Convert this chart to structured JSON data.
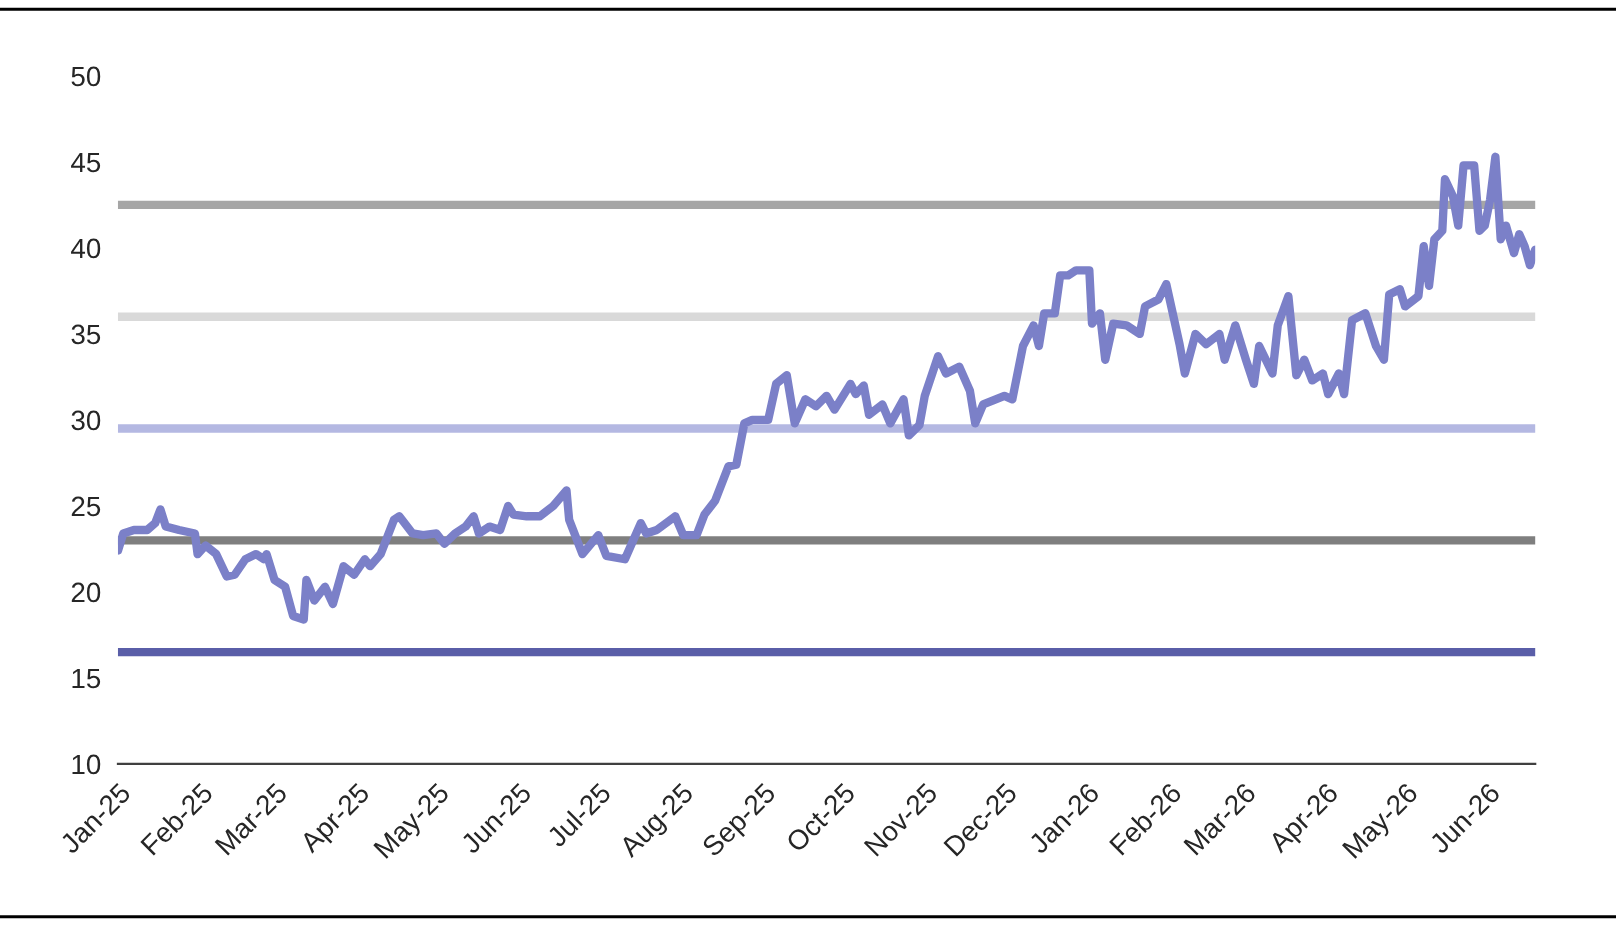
{
  "chart_data": {
    "type": "line",
    "x": [
      "2025-01-01",
      "2025-01-03",
      "2025-01-07",
      "2025-01-12",
      "2025-01-15",
      "2025-01-17",
      "2025-01-19",
      "2025-01-24",
      "2025-01-30",
      "2025-01-31",
      "2025-02-03",
      "2025-02-07",
      "2025-02-11",
      "2025-02-14",
      "2025-02-18",
      "2025-02-22",
      "2025-02-25",
      "2025-02-26",
      "2025-03-01",
      "2025-03-05",
      "2025-03-08",
      "2025-03-12",
      "2025-03-13",
      "2025-03-16",
      "2025-03-20",
      "2025-03-23",
      "2025-03-27",
      "2025-03-31",
      "2025-04-04",
      "2025-04-06",
      "2025-04-10",
      "2025-04-15",
      "2025-04-17",
      "2025-04-22",
      "2025-04-26",
      "2025-05-01",
      "2025-05-04",
      "2025-05-08",
      "2025-05-12",
      "2025-05-15",
      "2025-05-17",
      "2025-05-21",
      "2025-05-25",
      "2025-05-28",
      "2025-05-30",
      "2025-06-04",
      "2025-06-09",
      "2025-06-14",
      "2025-06-19",
      "2025-06-20",
      "2025-06-25",
      "2025-07-01",
      "2025-07-04",
      "2025-07-11",
      "2025-07-17",
      "2025-07-19",
      "2025-07-23",
      "2025-07-30",
      "2025-08-02",
      "2025-08-07",
      "2025-08-10",
      "2025-08-14",
      "2025-08-19",
      "2025-08-22",
      "2025-08-25",
      "2025-08-28",
      "2025-09-03",
      "2025-09-06",
      "2025-09-10",
      "2025-09-13",
      "2025-09-17",
      "2025-09-21",
      "2025-09-25",
      "2025-09-28",
      "2025-10-04",
      "2025-10-06",
      "2025-10-09",
      "2025-10-11",
      "2025-10-16",
      "2025-10-19",
      "2025-10-24",
      "2025-10-26",
      "2025-10-30",
      "2025-11-01",
      "2025-11-06",
      "2025-11-09",
      "2025-11-14",
      "2025-11-18",
      "2025-11-20",
      "2025-11-23",
      "2025-12-01",
      "2025-12-04",
      "2025-12-08",
      "2025-12-12",
      "2025-12-14",
      "2025-12-16",
      "2025-12-20",
      "2025-12-22",
      "2025-12-25",
      "2025-12-28",
      "2026-01-02",
      "2026-01-03",
      "2026-01-06",
      "2026-01-08",
      "2026-01-11",
      "2026-01-16",
      "2026-01-21",
      "2026-01-23",
      "2026-01-28",
      "2026-01-31",
      "2026-02-03",
      "2026-02-05",
      "2026-02-07",
      "2026-02-11",
      "2026-02-15",
      "2026-02-20",
      "2026-02-22",
      "2026-02-26",
      "2026-03-02",
      "2026-03-05",
      "2026-03-07",
      "2026-03-12",
      "2026-03-14",
      "2026-03-18",
      "2026-03-21",
      "2026-03-24",
      "2026-03-27",
      "2026-03-31",
      "2026-04-02",
      "2026-04-06",
      "2026-04-08",
      "2026-04-11",
      "2026-04-16",
      "2026-04-20",
      "2026-04-23",
      "2026-04-25",
      "2026-04-29",
      "2026-05-01",
      "2026-05-06",
      "2026-05-08",
      "2026-05-10",
      "2026-05-12",
      "2026-05-15",
      "2026-05-16",
      "2026-05-19",
      "2026-05-21",
      "2026-05-23",
      "2026-05-27",
      "2026-05-29",
      "2026-05-31",
      "2026-06-02",
      "2026-06-04",
      "2026-06-06",
      "2026-06-08",
      "2026-06-11",
      "2026-06-13",
      "2026-06-15",
      "2026-06-17",
      "2026-06-19"
    ],
    "series": [
      {
        "color": "#7b80c8",
        "values": [
          22.4,
          23.4,
          23.6,
          23.6,
          24.0,
          24.8,
          23.8,
          23.6,
          23.4,
          22.2,
          22.7,
          22.2,
          20.9,
          21.0,
          21.9,
          22.2,
          21.9,
          22.2,
          20.7,
          20.3,
          18.6,
          18.4,
          20.7,
          19.5,
          20.3,
          19.3,
          21.5,
          21.0,
          21.9,
          21.5,
          22.2,
          24.2,
          24.4,
          23.4,
          23.3,
          23.4,
          22.8,
          23.4,
          23.8,
          24.4,
          23.4,
          23.8,
          23.6,
          25.0,
          24.5,
          24.4,
          24.4,
          25.0,
          25.9,
          24.2,
          22.2,
          23.3,
          22.1,
          21.9,
          24.0,
          23.4,
          23.6,
          24.4,
          23.3,
          23.3,
          24.5,
          25.3,
          27.3,
          27.4,
          29.8,
          30.0,
          30.0,
          32.1,
          32.6,
          29.8,
          31.2,
          30.8,
          31.4,
          30.6,
          32.1,
          31.5,
          32.0,
          30.3,
          30.9,
          29.8,
          31.2,
          29.1,
          29.7,
          31.4,
          33.7,
          32.7,
          33.1,
          31.7,
          29.8,
          30.9,
          31.4,
          31.2,
          34.3,
          35.5,
          34.3,
          36.2,
          36.2,
          38.4,
          38.4,
          38.7,
          38.7,
          35.6,
          36.2,
          33.5,
          35.6,
          35.5,
          35.0,
          36.6,
          37.0,
          37.9,
          35.8,
          34.4,
          32.7,
          35.0,
          34.4,
          35.0,
          33.5,
          35.5,
          33.5,
          32.1,
          34.3,
          32.7,
          35.5,
          37.2,
          32.6,
          33.5,
          32.3,
          32.7,
          31.5,
          32.7,
          31.5,
          35.8,
          36.2,
          34.3,
          33.5,
          37.3,
          37.6,
          36.6,
          37.2,
          40.1,
          37.8,
          40.5,
          41.0,
          44.0,
          43.0,
          41.3,
          44.8,
          44.8,
          41.0,
          41.3,
          42.8,
          45.3,
          40.5,
          41.3,
          39.7,
          40.8,
          40.1,
          39.0,
          39.9
        ]
      }
    ],
    "xlim": [
      "2025-01-01",
      "2026-06-19"
    ],
    "xticks": [
      {
        "value": "2025-01-01",
        "label": "Jan-25"
      },
      {
        "value": "2025-02-01",
        "label": "Feb-25"
      },
      {
        "value": "2025-03-01",
        "label": "Mar-25"
      },
      {
        "value": "2025-04-01",
        "label": "Apr-25"
      },
      {
        "value": "2025-05-01",
        "label": "May-25"
      },
      {
        "value": "2025-06-01",
        "label": "Jun-25"
      },
      {
        "value": "2025-07-01",
        "label": "Jul-25"
      },
      {
        "value": "2025-08-01",
        "label": "Aug-25"
      },
      {
        "value": "2025-09-01",
        "label": "Sep-25"
      },
      {
        "value": "2025-10-01",
        "label": "Oct-25"
      },
      {
        "value": "2025-11-01",
        "label": "Nov-25"
      },
      {
        "value": "2025-12-01",
        "label": "Dec-25"
      },
      {
        "value": "2026-01-01",
        "label": "Jan-26"
      },
      {
        "value": "2026-02-01",
        "label": "Feb-26"
      },
      {
        "value": "2026-03-01",
        "label": "Mar-26"
      },
      {
        "value": "2026-04-01",
        "label": "Apr-26"
      },
      {
        "value": "2026-05-01",
        "label": "May-26"
      },
      {
        "value": "2026-06-01",
        "label": "Jun-26"
      }
    ],
    "ylim": [
      10,
      50
    ],
    "yticks": [
      10,
      15,
      20,
      25,
      30,
      35,
      40,
      45,
      50
    ],
    "ref_lines": [
      {
        "axis": "y",
        "value": 42.5,
        "color": "#a6a6a6"
      },
      {
        "axis": "y",
        "value": 36,
        "color": "#d9d9d9"
      },
      {
        "axis": "y",
        "value": 29.5,
        "color": "#b4b8e2"
      },
      {
        "axis": "y",
        "value": 23,
        "color": "#7f7f7f"
      },
      {
        "axis": "y",
        "value": 16.5,
        "color": "#5a5ea8"
      }
    ],
    "grid": false,
    "marker": "none",
    "line_style": "solid"
  }
}
